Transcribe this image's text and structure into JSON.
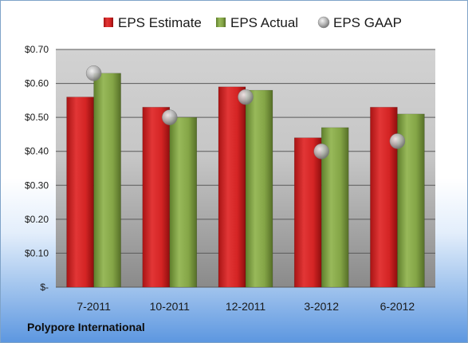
{
  "company_label": "Polypore International",
  "chart_data": {
    "type": "bar",
    "categories": [
      "7-2011",
      "10-2011",
      "12-2011",
      "3-2012",
      "6-2012"
    ],
    "series": [
      {
        "name": "EPS Estimate",
        "kind": "bar",
        "color": "#d42a2a",
        "values": [
          0.56,
          0.53,
          0.59,
          0.44,
          0.53
        ]
      },
      {
        "name": "EPS Actual",
        "kind": "bar",
        "color": "#86a84a",
        "values": [
          0.63,
          0.5,
          0.58,
          0.47,
          0.51
        ]
      },
      {
        "name": "EPS GAAP",
        "kind": "marker",
        "color": "#b8b8b8",
        "values": [
          0.63,
          0.5,
          0.56,
          0.4,
          0.43
        ]
      }
    ],
    "y_ticks": [
      {
        "value": 0,
        "label": "$-"
      },
      {
        "value": 0.1,
        "label": "$0.10"
      },
      {
        "value": 0.2,
        "label": "$0.20"
      },
      {
        "value": 0.3,
        "label": "$0.30"
      },
      {
        "value": 0.4,
        "label": "$0.40"
      },
      {
        "value": 0.5,
        "label": "$0.50"
      },
      {
        "value": 0.6,
        "label": "$0.60"
      },
      {
        "value": 0.7,
        "label": "$0.70"
      }
    ],
    "ylim": [
      0,
      0.7
    ],
    "grid": true,
    "legend_position": "top"
  }
}
